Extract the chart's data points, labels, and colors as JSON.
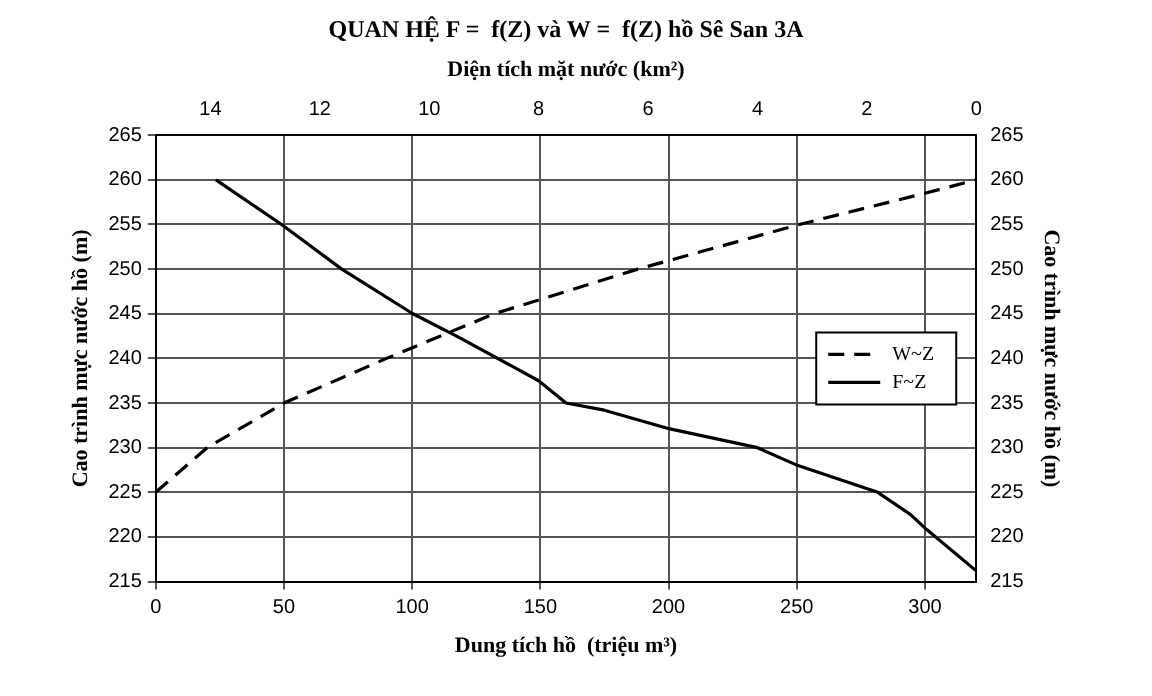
{
  "chart_data": {
    "type": "line",
    "title": "QUAN HỆ F =  f(Z) và W =  f(Z) hồ Sê San 3A",
    "xlabel": "Dung tích hồ  (triệu m³)",
    "x2label": "Diện tích mặt nước (km²)",
    "ylabel": "Cao trình mực nước hồ (m)",
    "y2label": "Cao trình mực nước hồ (m)",
    "xlim": [
      0,
      320
    ],
    "xticks": [
      0,
      50,
      100,
      150,
      200,
      250,
      300
    ],
    "x2lim": [
      15,
      0
    ],
    "x2ticks": [
      14,
      12,
      10,
      8,
      6,
      4,
      2,
      0
    ],
    "ylim": [
      215,
      265
    ],
    "yticks": [
      215,
      220,
      225,
      230,
      235,
      240,
      245,
      250,
      255,
      260,
      265
    ],
    "y2lim": [
      215,
      265
    ],
    "y2ticks": [
      215,
      220,
      225,
      230,
      235,
      240,
      245,
      250,
      255,
      260,
      265
    ],
    "grid": true,
    "legend": "right",
    "marker": "none",
    "series": [
      {
        "name": "W~Z",
        "color": "#000000",
        "line_style": "dashed",
        "x": [
          0,
          20,
          50,
          90,
          132,
          188,
          251,
          300,
          320
        ],
        "values": [
          225,
          230,
          235,
          240,
          245,
          250,
          255,
          258.5,
          260
        ]
      },
      {
        "name": "F~Z",
        "color": "#000000",
        "line_style": "solid",
        "axis": "x2",
        "x": [
          13.9,
          12.7,
          11.6,
          10.3,
          9.5,
          8.0,
          7.5,
          6.8,
          5.6,
          4.0,
          3.3,
          1.8,
          1.2,
          0.9,
          0
        ],
        "values": [
          260,
          255,
          250,
          245,
          242.5,
          237.5,
          235,
          234.2,
          232.1,
          230,
          228.1,
          225,
          222.5,
          220.8,
          216.2
        ]
      }
    ]
  }
}
